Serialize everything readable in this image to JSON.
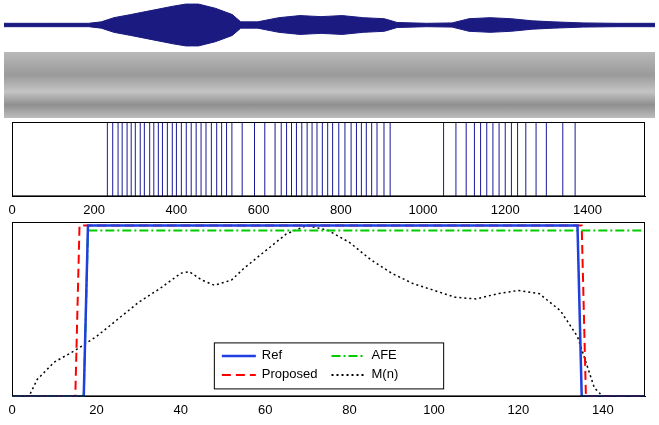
{
  "chart_data": [
    {
      "type": "area",
      "color": "#1a1a80",
      "xlim": [
        0,
        1540
      ],
      "ylim": [
        -1.1,
        1.1
      ],
      "tick_labels": false,
      "grid": false,
      "x": [
        0,
        100,
        200,
        230,
        260,
        300,
        350,
        400,
        430,
        460,
        500,
        540,
        560,
        600,
        650,
        700,
        750,
        800,
        850,
        900,
        930,
        1000,
        1060,
        1100,
        1150,
        1200,
        1250,
        1300,
        1370,
        1450,
        1540
      ],
      "series": [
        {
          "values": [
            0.08,
            0.08,
            0.08,
            0.15,
            0.35,
            0.5,
            0.7,
            0.9,
            1.0,
            1.0,
            0.8,
            0.5,
            0.15,
            0.15,
            0.35,
            0.45,
            0.4,
            0.45,
            0.35,
            0.3,
            0.12,
            0.08,
            0.1,
            0.3,
            0.35,
            0.3,
            0.2,
            0.15,
            0.1,
            0.08,
            0.08
          ]
        },
        {
          "values": [
            -0.08,
            -0.08,
            -0.08,
            -0.15,
            -0.35,
            -0.5,
            -0.7,
            -0.9,
            -1.0,
            -1.0,
            -0.8,
            -0.5,
            -0.15,
            -0.15,
            -0.35,
            -0.45,
            -0.4,
            -0.45,
            -0.35,
            -0.3,
            -0.12,
            -0.08,
            -0.1,
            -0.3,
            -0.35,
            -0.3,
            -0.2,
            -0.15,
            -0.1,
            -0.08,
            -0.08
          ]
        }
      ]
    },
    {
      "type": "impulse",
      "color": "#1a1a99",
      "xlim": [
        0,
        1540
      ],
      "ylim": [
        0,
        1
      ],
      "xticks": [
        0,
        200,
        400,
        600,
        800,
        1000,
        1200,
        1400
      ],
      "yticks": [],
      "tick_labels": "x",
      "grid": false,
      "x": [
        232,
        245,
        258,
        268,
        280,
        290,
        300,
        312,
        322,
        335,
        345,
        356,
        366,
        378,
        390,
        400,
        412,
        424,
        436,
        448,
        460,
        472,
        485,
        498,
        510,
        522,
        535,
        560,
        590,
        615,
        640,
        655,
        668,
        680,
        692,
        705,
        718,
        730,
        742,
        755,
        768,
        780,
        795,
        810,
        825,
        838,
        850,
        862,
        875,
        888,
        905,
        920,
        1050,
        1080,
        1105,
        1125,
        1140,
        1155,
        1170,
        1185,
        1200,
        1215,
        1230,
        1250,
        1275,
        1300,
        1340,
        1370
      ],
      "values": [
        1,
        1,
        1,
        1,
        1,
        1,
        1,
        1,
        1,
        1,
        1,
        1,
        1,
        1,
        1,
        1,
        1,
        1,
        1,
        1,
        1,
        1,
        1,
        1,
        1,
        1,
        1,
        1,
        1,
        1,
        1,
        1,
        1,
        1,
        1,
        1,
        1,
        1,
        1,
        1,
        1,
        1,
        1,
        1,
        1,
        1,
        1,
        1,
        1,
        1,
        1,
        1,
        1,
        1,
        1,
        1,
        1,
        1,
        1,
        1,
        1,
        1,
        1,
        1,
        1,
        1,
        1,
        1
      ]
    },
    {
      "type": "line",
      "xlim": [
        0,
        150
      ],
      "ylim": [
        0,
        1.02
      ],
      "xticks": [
        0,
        20,
        40,
        60,
        80,
        100,
        120,
        140
      ],
      "yticks": [],
      "tick_labels": "x",
      "grid": false,
      "legend": "bottom",
      "series": [
        {
          "name": "Ref",
          "color": "#1f3fdf",
          "line_style": "solid",
          "x": [
            0,
            17,
            18,
            134,
            135,
            150
          ],
          "values": [
            0,
            0,
            1,
            1,
            0,
            0
          ]
        },
        {
          "name": "AFE",
          "color": "#00cc00",
          "line_style": "dash-dot",
          "x": [
            0,
            17,
            18,
            150
          ],
          "values": [
            0,
            0,
            0.97,
            0.97
          ]
        },
        {
          "name": "Proposed",
          "color": "#ff0000",
          "line_style": "dashed",
          "x": [
            0,
            15,
            16,
            135,
            136,
            150
          ],
          "values": [
            0,
            0,
            1,
            1,
            0,
            0
          ]
        },
        {
          "name": "M(n)",
          "color": "#000000",
          "line_style": "dotted",
          "x": [
            0,
            4,
            6,
            10,
            15,
            20,
            25,
            30,
            35,
            40,
            42,
            45,
            48,
            52,
            55,
            60,
            65,
            70,
            75,
            80,
            85,
            90,
            95,
            100,
            105,
            110,
            115,
            120,
            125,
            130,
            134,
            136,
            138,
            140,
            150
          ],
          "values": [
            0,
            0,
            0.1,
            0.2,
            0.27,
            0.35,
            0.45,
            0.55,
            0.63,
            0.72,
            0.73,
            0.68,
            0.65,
            0.68,
            0.75,
            0.85,
            0.95,
            1.0,
            0.97,
            0.9,
            0.8,
            0.72,
            0.66,
            0.62,
            0.58,
            0.57,
            0.6,
            0.62,
            0.6,
            0.5,
            0.35,
            0.2,
            0.05,
            0,
            0
          ]
        }
      ]
    }
  ]
}
